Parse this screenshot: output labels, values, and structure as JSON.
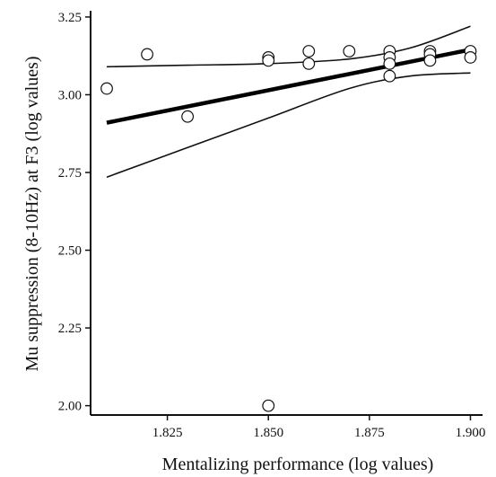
{
  "chart_data": {
    "type": "scatter",
    "title": "",
    "xlabel": "Mentalizing performance (log values)",
    "ylabel": "Mu suppression (8-10Hz) at F3 (log values)",
    "xlim": [
      1.806,
      1.903
    ],
    "ylim": [
      1.97,
      3.27
    ],
    "x_ticks": [
      1.825,
      1.85,
      1.875,
      1.9
    ],
    "x_tick_labels": [
      "1.825",
      "1.850",
      "1.875",
      "1.900"
    ],
    "y_ticks": [
      2.0,
      2.25,
      2.5,
      2.75,
      3.0,
      3.25
    ],
    "y_tick_labels": [
      "2.00",
      "2.25",
      "2.50",
      "2.75",
      "3.00",
      "3.25"
    ],
    "grid": false,
    "points": [
      {
        "x": 1.81,
        "y": 3.02
      },
      {
        "x": 1.82,
        "y": 3.13
      },
      {
        "x": 1.83,
        "y": 2.93
      },
      {
        "x": 1.85,
        "y": 3.12
      },
      {
        "x": 1.85,
        "y": 3.11
      },
      {
        "x": 1.85,
        "y": 2.0
      },
      {
        "x": 1.86,
        "y": 3.14
      },
      {
        "x": 1.86,
        "y": 3.1
      },
      {
        "x": 1.87,
        "y": 3.14
      },
      {
        "x": 1.88,
        "y": 3.14
      },
      {
        "x": 1.88,
        "y": 3.12
      },
      {
        "x": 1.88,
        "y": 3.1
      },
      {
        "x": 1.88,
        "y": 3.06
      },
      {
        "x": 1.89,
        "y": 3.14
      },
      {
        "x": 1.89,
        "y": 3.13
      },
      {
        "x": 1.89,
        "y": 3.11
      },
      {
        "x": 1.9,
        "y": 3.14
      },
      {
        "x": 1.9,
        "y": 3.12
      }
    ],
    "fit_line": {
      "x": [
        1.81,
        1.9
      ],
      "y": [
        2.91,
        3.145
      ]
    },
    "ci_upper": {
      "x": [
        1.81,
        1.83,
        1.85,
        1.87,
        1.885,
        1.9
      ],
      "y": [
        3.09,
        3.095,
        3.1,
        3.115,
        3.15,
        3.22
      ]
    },
    "ci_lower": {
      "x": [
        1.81,
        1.83,
        1.85,
        1.87,
        1.885,
        1.9
      ],
      "y": [
        2.735,
        2.83,
        2.925,
        3.02,
        3.06,
        3.07
      ]
    }
  }
}
